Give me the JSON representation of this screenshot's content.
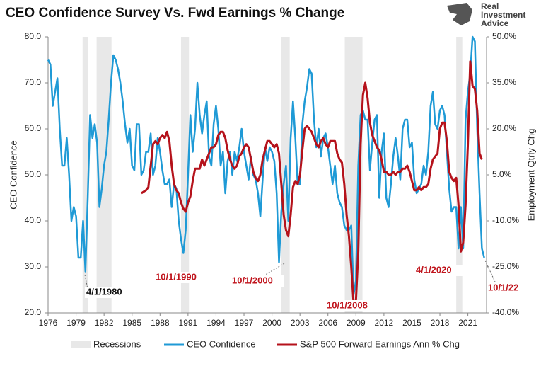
{
  "chart_data": {
    "type": "line",
    "title": "CEO Confidence Survey Vs. Fwd Earnings % Change",
    "logo": [
      "Real",
      "Investment",
      "Advice"
    ],
    "y_label": "CEO Confidence",
    "y2_label": "Employment Qtrly Chg",
    "xlim": [
      1976,
      2023
    ],
    "xticks": [
      1976,
      1979,
      1982,
      1985,
      1988,
      1991,
      1994,
      1997,
      2000,
      2003,
      2006,
      2009,
      2012,
      2015,
      2018,
      2021
    ],
    "ylim": [
      20,
      80
    ],
    "yticks": [
      {
        "value": 20,
        "label": "20.0"
      },
      {
        "value": 30,
        "label": "30.0"
      },
      {
        "value": 40,
        "label": "40.0"
      },
      {
        "value": 50,
        "label": "50.0"
      },
      {
        "value": 60,
        "label": "60.0"
      },
      {
        "value": 70,
        "label": "70.0"
      },
      {
        "value": 80,
        "label": "80.0"
      }
    ],
    "y2lim": [
      -40,
      50
    ],
    "y2ticks": [
      {
        "value": -40,
        "label": "-40.0%"
      },
      {
        "value": -25,
        "label": "-25.0%"
      },
      {
        "value": -10,
        "label": "-10.0%"
      },
      {
        "value": 5,
        "label": "5.0%"
      },
      {
        "value": 20,
        "label": "20.0%"
      },
      {
        "value": 35,
        "label": "35.0%"
      },
      {
        "value": 50,
        "label": "50.0%"
      }
    ],
    "recessions": {
      "name": "Recessions",
      "color": "#e8e8e8",
      "periods": [
        [
          1979.7,
          1980.3
        ],
        [
          1981.2,
          1982.8
        ],
        [
          1990.25,
          1991.1
        ],
        [
          2001.0,
          2001.9
        ],
        [
          2007.8,
          2009.7
        ],
        [
          2019.75,
          2020.4
        ]
      ]
    },
    "series": [
      {
        "name": "CEO Confidence",
        "color": "#1f9ad6",
        "axis": "y",
        "x": [
          1976,
          1976.25,
          1976.5,
          1976.75,
          1977,
          1977.25,
          1977.5,
          1977.75,
          1978,
          1978.25,
          1978.5,
          1978.75,
          1979,
          1979.25,
          1979.5,
          1979.75,
          1980,
          1980.25,
          1980.5,
          1980.75,
          1981,
          1981.25,
          1981.5,
          1981.75,
          1982,
          1982.25,
          1982.5,
          1982.75,
          1983,
          1983.25,
          1983.5,
          1983.75,
          1984,
          1984.25,
          1984.5,
          1984.75,
          1985,
          1985.25,
          1985.5,
          1985.75,
          1986,
          1986.25,
          1986.5,
          1986.75,
          1987,
          1987.25,
          1987.5,
          1987.75,
          1988,
          1988.25,
          1988.5,
          1988.75,
          1989,
          1989.25,
          1989.5,
          1989.75,
          1990,
          1990.25,
          1990.5,
          1990.75,
          1991,
          1991.25,
          1991.5,
          1991.75,
          1992,
          1992.25,
          1992.5,
          1992.75,
          1993,
          1993.25,
          1993.5,
          1993.75,
          1994,
          1994.25,
          1994.5,
          1994.75,
          1995,
          1995.25,
          1995.5,
          1995.75,
          1996,
          1996.25,
          1996.5,
          1996.75,
          1997,
          1997.25,
          1997.5,
          1997.75,
          1998,
          1998.25,
          1998.5,
          1998.75,
          1999,
          1999.25,
          1999.5,
          1999.75,
          2000,
          2000.25,
          2000.5,
          2000.75,
          2001,
          2001.25,
          2001.5,
          2001.75,
          2002,
          2002.25,
          2002.5,
          2002.75,
          2003,
          2003.25,
          2003.5,
          2003.75,
          2004,
          2004.25,
          2004.5,
          2004.75,
          2005,
          2005.25,
          2005.5,
          2005.75,
          2006,
          2006.25,
          2006.5,
          2006.75,
          2007,
          2007.25,
          2007.5,
          2007.75,
          2008,
          2008.25,
          2008.5,
          2008.75,
          2009,
          2009.25,
          2009.5,
          2009.75,
          2010,
          2010.25,
          2010.5,
          2010.75,
          2011,
          2011.25,
          2011.5,
          2011.75,
          2012,
          2012.25,
          2012.5,
          2012.75,
          2013,
          2013.25,
          2013.5,
          2013.75,
          2014,
          2014.25,
          2014.5,
          2014.75,
          2015,
          2015.25,
          2015.5,
          2015.75,
          2016,
          2016.25,
          2016.5,
          2016.75,
          2017,
          2017.25,
          2017.5,
          2017.75,
          2018,
          2018.25,
          2018.5,
          2018.75,
          2019,
          2019.25,
          2019.5,
          2019.75,
          2020,
          2020.25,
          2020.5,
          2020.75,
          2021,
          2021.25,
          2021.5,
          2021.75,
          2022,
          2022.25,
          2022.5,
          2022.75
        ],
        "values": [
          75,
          74,
          65,
          68,
          71,
          60,
          52,
          52,
          58,
          50,
          40,
          43,
          41,
          32,
          32,
          40,
          29,
          45,
          63,
          58,
          61,
          57,
          43,
          47,
          52,
          55,
          62,
          70,
          76,
          75,
          73,
          70,
          66,
          61,
          57,
          60,
          52,
          51,
          61,
          61,
          50,
          51,
          55,
          55,
          59,
          50,
          52,
          58,
          55,
          51,
          48,
          48,
          49,
          43,
          48,
          47,
          40,
          36,
          33,
          38,
          50,
          63,
          55,
          60,
          70,
          63,
          59,
          63,
          66,
          54,
          52,
          61,
          65,
          60,
          52,
          55,
          46,
          53,
          55,
          50,
          55,
          53,
          56,
          60,
          55,
          52,
          49,
          54,
          50,
          49,
          46,
          41,
          49,
          56,
          53,
          56,
          55,
          53,
          46,
          31,
          42,
          48,
          52,
          40,
          58,
          66,
          58,
          48,
          48,
          61,
          66,
          69,
          73,
          72,
          62,
          56,
          60,
          54,
          58,
          59,
          56,
          52,
          48,
          52,
          46,
          44,
          43,
          39,
          38,
          38,
          39,
          24,
          27,
          52,
          63,
          64,
          62,
          62,
          51,
          57,
          62,
          63,
          45,
          55,
          59,
          45,
          43,
          48,
          54,
          58,
          54,
          49,
          60,
          62,
          62,
          56,
          57,
          49,
          46,
          47,
          48,
          52,
          50,
          55,
          65,
          68,
          61,
          60,
          64,
          65,
          63,
          55,
          47,
          42,
          43,
          43,
          34,
          43,
          34,
          62,
          68,
          72,
          80,
          79,
          60,
          46,
          34,
          32
        ]
      },
      {
        "name": "S&P 500 Forward Earnings Ann % Chg",
        "color": "#b5121b",
        "axis": "y2",
        "x": [
          1986,
          1986.25,
          1986.5,
          1986.75,
          1987,
          1987.25,
          1987.5,
          1987.75,
          1988,
          1988.25,
          1988.5,
          1988.75,
          1989,
          1989.25,
          1989.5,
          1989.75,
          1990,
          1990.25,
          1990.5,
          1990.75,
          1991,
          1991.25,
          1991.5,
          1991.75,
          1992,
          1992.25,
          1992.5,
          1992.75,
          1993,
          1993.25,
          1993.5,
          1993.75,
          1994,
          1994.25,
          1994.5,
          1994.75,
          1995,
          1995.25,
          1995.5,
          1995.75,
          1996,
          1996.25,
          1996.5,
          1996.75,
          1997,
          1997.25,
          1997.5,
          1997.75,
          1998,
          1998.25,
          1998.5,
          1998.75,
          1999,
          1999.25,
          1999.5,
          1999.75,
          2000,
          2000.25,
          2000.5,
          2000.75,
          2001,
          2001.25,
          2001.5,
          2001.75,
          2002,
          2002.25,
          2002.5,
          2002.75,
          2003,
          2003.25,
          2003.5,
          2003.75,
          2004,
          2004.25,
          2004.5,
          2004.75,
          2005,
          2005.25,
          2005.5,
          2005.75,
          2006,
          2006.25,
          2006.5,
          2006.75,
          2007,
          2007.25,
          2007.5,
          2007.75,
          2008,
          2008.25,
          2008.5,
          2008.75,
          2009,
          2009.25,
          2009.5,
          2009.75,
          2010,
          2010.25,
          2010.5,
          2010.75,
          2011,
          2011.25,
          2011.5,
          2011.75,
          2012,
          2012.25,
          2012.5,
          2012.75,
          2013,
          2013.25,
          2013.5,
          2013.75,
          2014,
          2014.25,
          2014.5,
          2014.75,
          2015,
          2015.25,
          2015.5,
          2015.75,
          2016,
          2016.25,
          2016.5,
          2016.75,
          2017,
          2017.25,
          2017.5,
          2017.75,
          2018,
          2018.25,
          2018.5,
          2018.75,
          2019,
          2019.25,
          2019.5,
          2019.75,
          2020,
          2020.25,
          2020.5,
          2020.75,
          2021,
          2021.25,
          2021.5,
          2021.75,
          2022,
          2022.25,
          2022.5
        ],
        "values": [
          -1,
          -0.5,
          0,
          1,
          8,
          15,
          16,
          15,
          17,
          18,
          17,
          19,
          16,
          8,
          2,
          0,
          -1,
          -4,
          -6,
          -7,
          -4,
          -2,
          3,
          7,
          7,
          7,
          10,
          8,
          10,
          12,
          14,
          14,
          15,
          18,
          19,
          19,
          17,
          13,
          10,
          8,
          7,
          8,
          11,
          12,
          14,
          15,
          14,
          10,
          6,
          4,
          3,
          5,
          10,
          13,
          16,
          16,
          15,
          14,
          15,
          12,
          2,
          -8,
          -13,
          -15,
          -8,
          1,
          3,
          2,
          5,
          13,
          20,
          21,
          20,
          19,
          17,
          15,
          14,
          16,
          17,
          15,
          14,
          16,
          16,
          16,
          12,
          10,
          9,
          2,
          -8,
          -15,
          -25,
          -37,
          -36,
          -20,
          15,
          31,
          35,
          30,
          22,
          18,
          16,
          14,
          13,
          10,
          6,
          6,
          5,
          5,
          6,
          5,
          6,
          6,
          7,
          7,
          8,
          6,
          3,
          0,
          0,
          1,
          0,
          1,
          1,
          2,
          7,
          10,
          11,
          12,
          20,
          22,
          22,
          16,
          6,
          4,
          3,
          4,
          -5,
          -20,
          -17,
          -5,
          15,
          42,
          34,
          33,
          26,
          12,
          10
        ]
      }
    ],
    "annotations": [
      {
        "text": "4/1/1980",
        "color": "#111111"
      },
      {
        "text": "10/1/1990",
        "color": "#c0141c"
      },
      {
        "text": "10/1/2000",
        "color": "#c0141c"
      },
      {
        "text": "10/1/2008",
        "color": "#c0141c"
      },
      {
        "text": "4/1/2020",
        "color": "#c0141c"
      },
      {
        "text": "10/1/22",
        "color": "#c0141c"
      }
    ]
  }
}
